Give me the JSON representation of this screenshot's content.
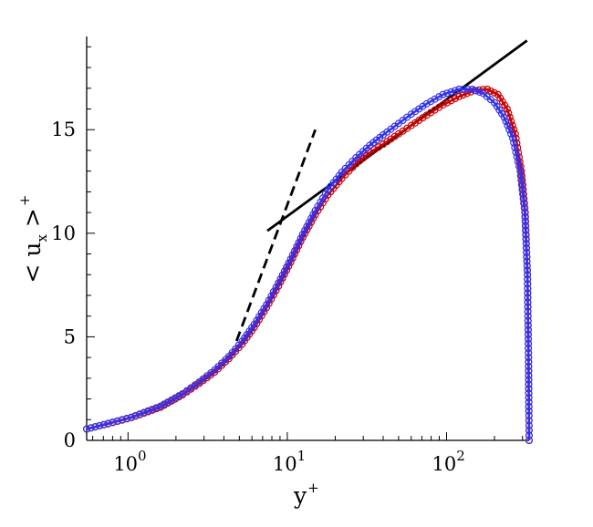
{
  "chart_data": {
    "type": "line",
    "xscale": "log",
    "xlim": [
      0.55,
      330
    ],
    "ylim": [
      0,
      19.5
    ],
    "grid": false,
    "x_ticks": [
      {
        "value": 1,
        "base": "10",
        "exp": "0"
      },
      {
        "value": 10,
        "base": "10",
        "exp": "1"
      },
      {
        "value": 100,
        "base": "10",
        "exp": "2"
      }
    ],
    "y_ticks": [
      "0",
      "5",
      "10",
      "15"
    ],
    "xlabel": {
      "base": "y",
      "sup": "+"
    },
    "ylabel": {
      "text": "< u",
      "sub": "x",
      "close": " >",
      "sup": "+"
    },
    "series": [
      {
        "color": "#cc0000",
        "marker": "circle",
        "x": [
          0.55,
          0.75,
          1.05,
          1.6,
          2.2,
          2.8,
          3.5,
          4.3,
          5.2,
          6.2,
          7.4,
          8.8,
          10.5,
          12.5,
          15,
          18,
          22,
          27,
          33,
          40,
          50,
          60,
          75,
          95,
          120,
          150,
          180,
          210,
          240,
          270,
          295,
          312,
          322,
          327,
          329,
          330
        ],
        "y": [
          0.55,
          0.8,
          1.1,
          1.6,
          2.2,
          2.75,
          3.3,
          3.95,
          4.65,
          5.45,
          6.4,
          7.45,
          8.6,
          9.8,
          10.9,
          11.85,
          12.65,
          13.35,
          13.9,
          14.3,
          14.8,
          15.2,
          15.7,
          16.2,
          16.6,
          16.9,
          16.95,
          16.7,
          16.0,
          14.8,
          13.0,
          11.0,
          8.0,
          4.0,
          1.2,
          0
        ]
      },
      {
        "color": "#3333ee",
        "marker": "circle",
        "x": [
          0.55,
          0.75,
          1.05,
          1.6,
          2.2,
          2.8,
          3.5,
          4.3,
          5.2,
          6.2,
          7.4,
          8.8,
          10.5,
          12.5,
          15,
          18,
          22,
          27,
          33,
          40,
          50,
          60,
          75,
          95,
          120,
          145,
          170,
          200,
          230,
          260,
          290,
          310,
          322,
          327,
          329,
          330
        ],
        "y": [
          0.55,
          0.82,
          1.12,
          1.65,
          2.25,
          2.82,
          3.4,
          4.05,
          4.78,
          5.6,
          6.55,
          7.6,
          8.75,
          9.95,
          11.1,
          12.1,
          12.95,
          13.65,
          14.25,
          14.75,
          15.3,
          15.75,
          16.25,
          16.7,
          16.95,
          16.95,
          16.75,
          16.3,
          15.6,
          14.6,
          13.0,
          11.0,
          8.0,
          4.0,
          1.2,
          0
        ]
      }
    ],
    "reference_lines": [
      {
        "style": "dashed",
        "x": [
          4.8,
          15
        ],
        "y": [
          4.8,
          15
        ]
      },
      {
        "style": "solid",
        "x": [
          7.5,
          320
        ],
        "y": [
          10.12,
          19.3
        ]
      }
    ]
  }
}
